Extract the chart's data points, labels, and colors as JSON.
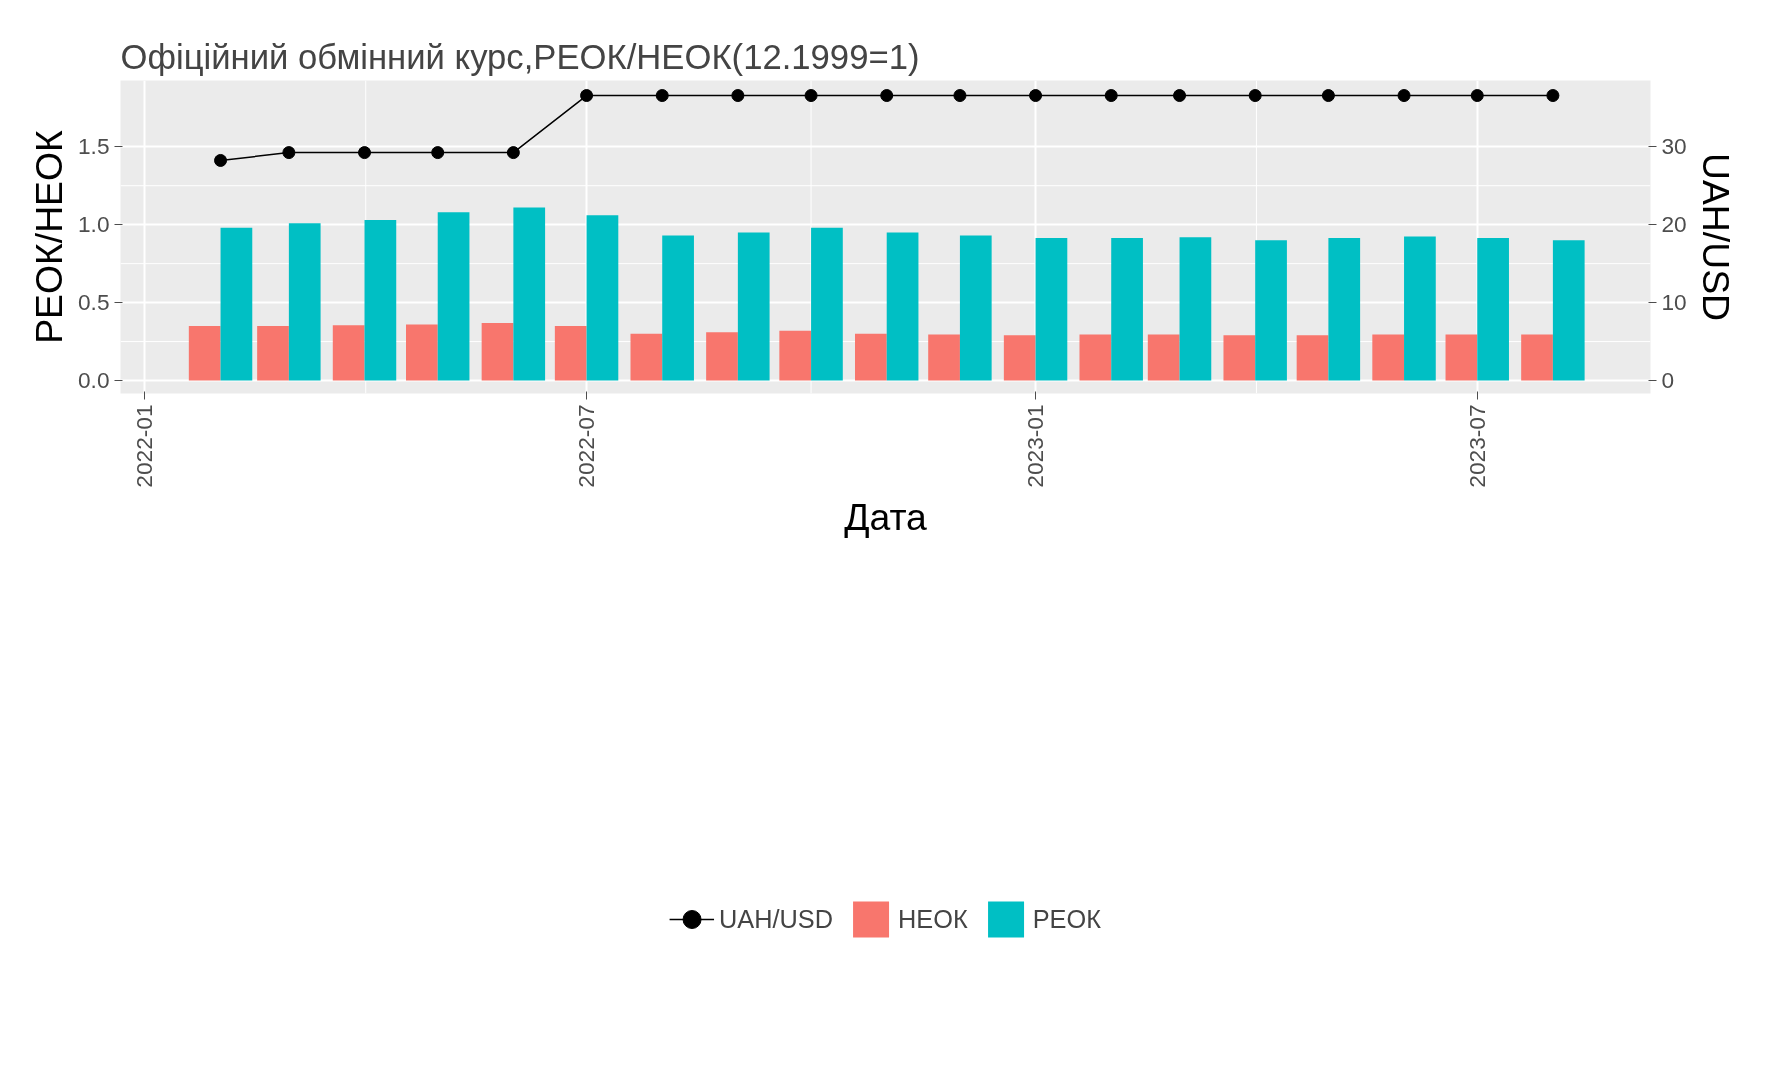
{
  "chart_data": {
    "type": "bar",
    "title": "Офіційний обмінний курс,РЕОК/НЕОК(12.1999=1)",
    "xlabel": "Дата",
    "ylabel": "РЕОК/НЕОК",
    "y2label": "UAH/USD",
    "x": [
      "2022-02",
      "2022-03",
      "2022-04",
      "2022-05",
      "2022-06",
      "2022-07",
      "2022-08",
      "2022-09",
      "2022-10",
      "2022-11",
      "2022-12",
      "2023-01",
      "2023-02",
      "2023-03",
      "2023-04",
      "2023-05",
      "2023-06",
      "2023-07",
      "2023-08"
    ],
    "series": [
      {
        "name": "UAH/USD",
        "type": "line",
        "axis": "y2",
        "color": "#000000",
        "marker": "circle",
        "values": [
          28.24,
          29.25,
          29.25,
          29.25,
          29.25,
          36.57,
          36.57,
          36.57,
          36.57,
          36.57,
          36.57,
          36.57,
          36.57,
          36.57,
          36.57,
          36.57,
          36.57,
          36.57,
          36.57
        ]
      },
      {
        "name": "НЕОК",
        "color": "#f8766d",
        "values": [
          0.35,
          0.35,
          0.355,
          0.36,
          0.37,
          0.35,
          0.3,
          0.31,
          0.32,
          0.3,
          0.295,
          0.29,
          0.295,
          0.295,
          0.29,
          0.29,
          0.295,
          0.295,
          0.295
        ]
      },
      {
        "name": "РЕОК",
        "color": "#00bfc4",
        "values": [
          0.98,
          1.01,
          1.03,
          1.08,
          1.11,
          1.06,
          0.93,
          0.95,
          0.98,
          0.95,
          0.93,
          0.915,
          0.915,
          0.92,
          0.9,
          0.915,
          0.925,
          0.915,
          0.9
        ]
      }
    ],
    "xlim": [
      "2021-12-22",
      "2023-09-10"
    ],
    "xticks": [
      "2022-01",
      "2022-07",
      "2023-01",
      "2023-07"
    ],
    "ylim": [
      -0.083,
      1.925
    ],
    "yticks": [
      {
        "value": 0,
        "label": "0.0"
      },
      {
        "value": 0.5,
        "label": "0.5"
      },
      {
        "value": 1,
        "label": "1.0"
      },
      {
        "value": 1.5,
        "label": "1.5"
      }
    ],
    "y2lim": [
      -1.66,
      38.5
    ],
    "y2ticks": [
      0,
      10,
      20,
      30
    ],
    "grid": true,
    "legend": "bottom"
  }
}
